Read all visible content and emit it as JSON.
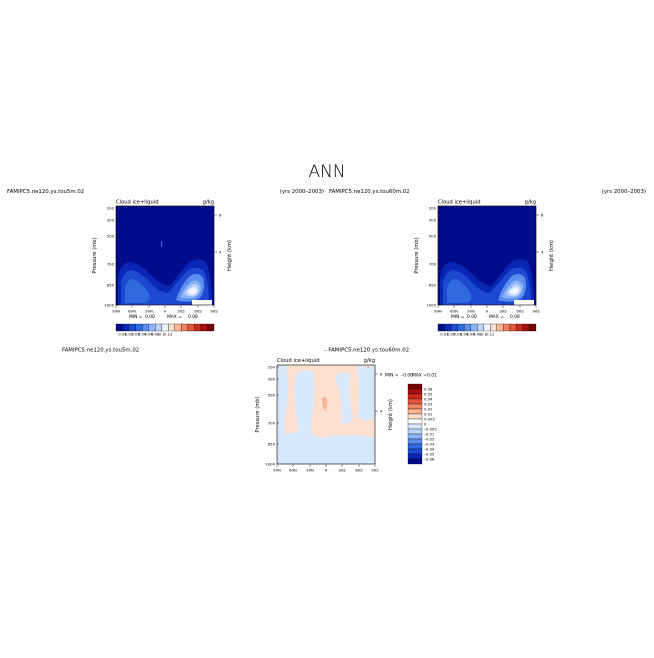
{
  "page": {
    "title": "ANN"
  },
  "chart_data": [
    {
      "type": "heatmap",
      "run_name": "FAMIPC5.ne120.ys.tou5m.02",
      "years": "(yrs 2000–2003)",
      "field_label": "Cloud ice+liquid",
      "units": "g/kg",
      "ylabel": "Pressure (mb)",
      "ylabel_right": "Height (km)",
      "xlim": [
        -90,
        90
      ],
      "ylim": [
        1000,
        200
      ],
      "x_ticks": [
        "90N",
        "60N",
        "30N",
        "0",
        "30S",
        "60S",
        "90S"
      ],
      "y_ticks": [
        "200",
        "300",
        "500",
        "700",
        "850",
        "1000"
      ],
      "height_ticks": [
        "8",
        "4"
      ],
      "min_label": "MIN =",
      "min_value": "0.00",
      "max_label": "MAX =",
      "max_value": "0.08",
      "colorbar_labels": [
        "0.01",
        "0.02",
        "0.03",
        "0.04",
        "0.06",
        "0.08",
        "0.1",
        "0.12"
      ]
    },
    {
      "type": "heatmap",
      "run_name": "FAMIPC5.ne120.ys.tou60m.02",
      "years": "(yrs 2000–2003)",
      "field_label": "Cloud ice+liquid",
      "units": "g/kg",
      "ylabel": "Pressure (mb)",
      "ylabel_right": "Height (km)",
      "xlim": [
        -90,
        90
      ],
      "ylim": [
        1000,
        200
      ],
      "x_ticks": [
        "90N",
        "60N",
        "30N",
        "0",
        "30S",
        "60S",
        "90S"
      ],
      "y_ticks": [
        "200",
        "300",
        "500",
        "700",
        "850",
        "1000"
      ],
      "height_ticks": [
        "8",
        "4"
      ],
      "min_label": "MIN =",
      "min_value": "0.00",
      "max_label": "MAX =",
      "max_value": "0.08",
      "colorbar_labels": [
        "0.01",
        "0.02",
        "0.03",
        "0.04",
        "0.06",
        "0.08",
        "0.1",
        "0.12"
      ]
    },
    {
      "type": "heatmap",
      "run_name": "FAMIPC5.ne120.ys.tou5m.02",
      "run_name_2": "– FAMIPC5.ne120.ys.tou60m.02",
      "field_label": "Cloud ice+liquid",
      "units": "g/kg",
      "ylabel": "Pressure (mb)",
      "ylabel_right": "Height (km)",
      "xlim": [
        -90,
        90
      ],
      "ylim": [
        1000,
        200
      ],
      "x_ticks": [
        "90N",
        "60N",
        "30N",
        "0",
        "30S",
        "60S",
        "90S"
      ],
      "y_ticks": [
        "200",
        "300",
        "500",
        "700",
        "850",
        "1000"
      ],
      "height_ticks": [
        "8",
        "4"
      ],
      "min_label": "MIN =",
      "min_value": "–0.00",
      "max_label": "MAX =",
      "max_value": "0.01",
      "colorbar_labels": [
        "0.06",
        "0.05",
        "0.04",
        "0.03",
        "0.02",
        "0.01",
        "0.005",
        "0",
        "–0.005",
        "–0.01",
        "–0.02",
        "–0.03",
        "–0.04",
        "–0.05",
        "–0.06"
      ]
    }
  ],
  "colors": {
    "seq_scale": [
      "#000c8c",
      "#0a26b4",
      "#1c49d0",
      "#2f6ae0",
      "#5b8ef0",
      "#8cb2f8",
      "#bcd4fc",
      "#eef4ff",
      "#fde0cf",
      "#f9b493",
      "#f18460",
      "#e3553a",
      "#cc2a1c",
      "#a8100e",
      "#7a0000"
    ],
    "div_scale": [
      "#7a0000",
      "#a8100e",
      "#cc2a1c",
      "#e3553a",
      "#f18460",
      "#f9b493",
      "#fde0cf",
      "#ffffff",
      "#d8e8fc",
      "#bcd4fc",
      "#8cb2f8",
      "#5b8ef0",
      "#2f6ae0",
      "#1c49d0",
      "#0a26b4",
      "#000c8c"
    ]
  }
}
